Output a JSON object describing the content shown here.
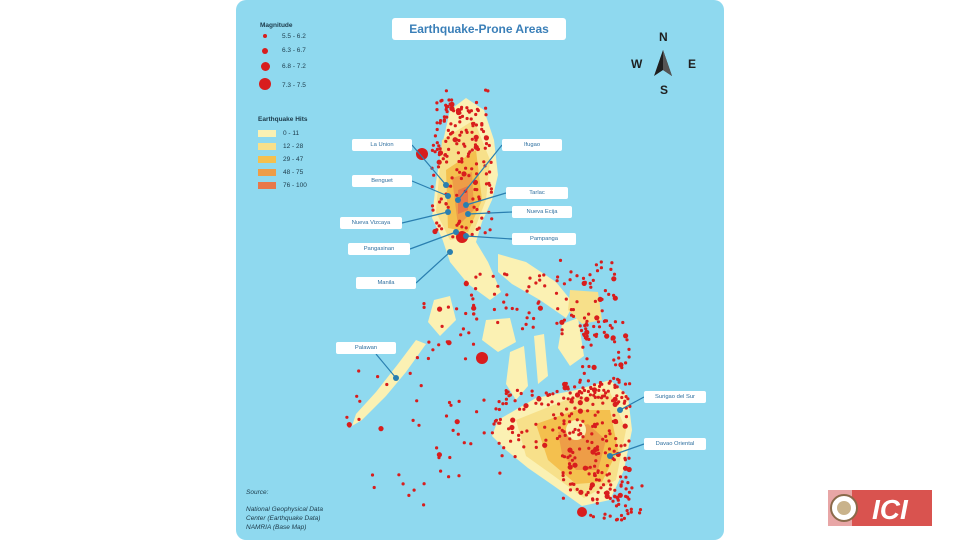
{
  "title": "Earthquake-Prone Areas",
  "magnitude_legend": {
    "heading": "Magnitude",
    "items": [
      {
        "label": "5.5 - 6.2"
      },
      {
        "label": "6.3 - 6.7"
      },
      {
        "label": "6.8 - 7.2"
      },
      {
        "label": "7.3 - 7.5"
      }
    ],
    "color": "#d81d1d"
  },
  "hits_legend": {
    "heading": "Earthquake Hits",
    "items": [
      {
        "label": "0 - 11",
        "color": "#fbf1b3"
      },
      {
        "label": "12 - 28",
        "color": "#f7e08a"
      },
      {
        "label": "29 - 47",
        "color": "#f4c04e"
      },
      {
        "label": "48 - 75",
        "color": "#ee9d47"
      },
      {
        "label": "76 - 100",
        "color": "#e8784a"
      }
    ]
  },
  "compass": {
    "n": "N",
    "s": "S",
    "e": "E",
    "w": "W"
  },
  "places": {
    "la_union": "La Union",
    "ifugao": "Ifugao",
    "benguet": "Benguet",
    "tarlac": "Tarlac",
    "nueva_ecija": "Nueva Ecija",
    "nueva_vizcaya": "Nueva Vizcaya",
    "pampanga": "Pampanga",
    "pangasinan": "Pangasinan",
    "manila": "Manila",
    "palawan": "Palawan",
    "surigao_del_sur": "Surigao del Sur",
    "davao_oriental": "Davao Oriental"
  },
  "source": {
    "line1": "Source:",
    "line2": "National Geophysical Data",
    "line3": "Center (Earthquake Data)",
    "line4": "NAMRIA (Base Map)"
  },
  "logo_text": "ICI",
  "colors": {
    "ocean": "#8fd9ef",
    "land": "#fbf1b3",
    "quake": "#d81d1d",
    "callout_line": "#2a7fb0"
  }
}
